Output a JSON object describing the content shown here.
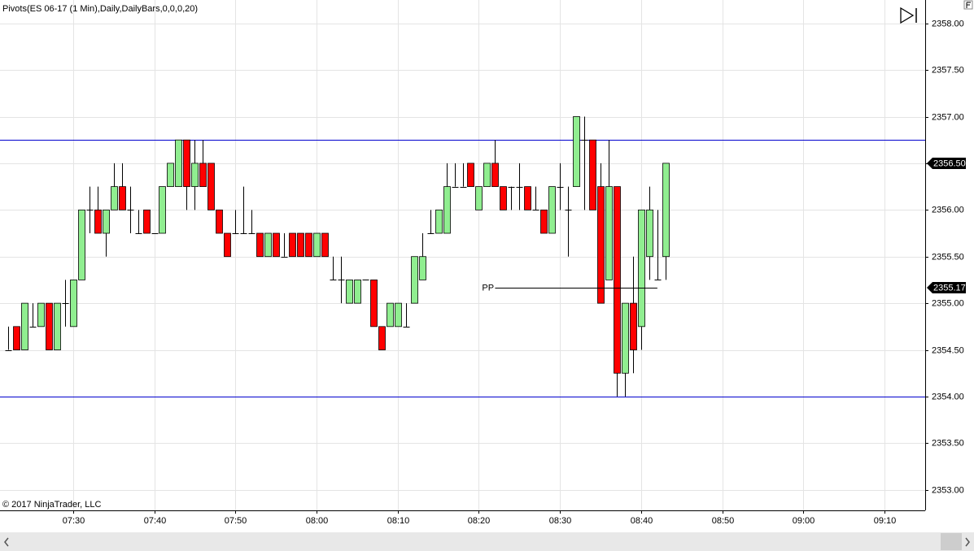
{
  "chart_data": {
    "type": "candlestick",
    "title": "Pivots(ES 06-17 (1 Min),Daily,DailyBars,0,0,0,20)",
    "footer": "© 2017 NinjaTrader, LLC",
    "x": [
      "07:22",
      "07:23",
      "07:24",
      "07:25",
      "07:26",
      "07:27",
      "07:28",
      "07:29",
      "07:30",
      "07:31",
      "07:32",
      "07:33",
      "07:34",
      "07:35",
      "07:36",
      "07:37",
      "07:38",
      "07:39",
      "07:40",
      "07:41",
      "07:42",
      "07:43",
      "07:44",
      "07:45",
      "07:46",
      "07:47",
      "07:48",
      "07:49",
      "07:50",
      "07:51",
      "07:52",
      "07:53",
      "07:54",
      "07:55",
      "07:56",
      "07:57",
      "07:58",
      "07:59",
      "08:00",
      "08:01",
      "08:02",
      "08:03",
      "08:04",
      "08:05",
      "08:06",
      "08:07",
      "08:08",
      "08:09",
      "08:10",
      "08:11",
      "08:12",
      "08:13",
      "08:14",
      "08:15",
      "08:16",
      "08:17",
      "08:18",
      "08:19",
      "08:20",
      "08:21",
      "08:22",
      "08:23",
      "08:24",
      "08:25",
      "08:26",
      "08:27",
      "08:28",
      "08:29",
      "08:30",
      "08:31",
      "08:32",
      "08:33",
      "08:34",
      "08:35",
      "08:36",
      "08:37",
      "08:38",
      "08:39",
      "08:40",
      "08:41",
      "08:42",
      "08:43"
    ],
    "open": [
      2354.5,
      2354.75,
      2354.5,
      2354.75,
      2354.75,
      2355,
      2354.5,
      2355,
      2354.75,
      2355.25,
      2356,
      2356,
      2355.75,
      2356,
      2356.25,
      2356,
      2355.75,
      2356,
      2355.75,
      2355.75,
      2356.25,
      2356.25,
      2356.75,
      2356.25,
      2356.5,
      2356.5,
      2356,
      2355.75,
      2355.75,
      2355.75,
      2355.75,
      2355.75,
      2355.5,
      2355.75,
      2355.5,
      2355.75,
      2355.75,
      2355.75,
      2355.5,
      2355.75,
      2355.25,
      2355.25,
      2355,
      2355,
      2355.25,
      2355.25,
      2354.75,
      2354.75,
      2354.75,
      2354.75,
      2355,
      2355.25,
      2355.75,
      2355.75,
      2355.75,
      2356.25,
      2356.25,
      2356.5,
      2356,
      2356.25,
      2356.5,
      2356.25,
      2356.25,
      2356.25,
      2356.25,
      2356,
      2356,
      2355.75,
      2356.25,
      2356,
      2356.25,
      2356.75,
      2356.75,
      2356.25,
      2355.25,
      2356.25,
      2354.25,
      2355,
      2354.75,
      2355.5,
      2355.25,
      2355.5
    ],
    "high": [
      2354.75,
      2354.75,
      2355,
      2355,
      2355,
      2355,
      2355,
      2355.25,
      2355.25,
      2356,
      2356.25,
      2356.25,
      2356,
      2356.5,
      2356.5,
      2356.25,
      2356,
      2356,
      2355.75,
      2356.25,
      2356.5,
      2356.75,
      2356.75,
      2356.75,
      2356.75,
      2356.5,
      2356,
      2355.75,
      2356,
      2356.25,
      2356,
      2355.75,
      2355.75,
      2355.75,
      2355.75,
      2355.75,
      2355.75,
      2355.75,
      2355.75,
      2355.75,
      2355.5,
      2355.5,
      2355.25,
      2355.25,
      2355.25,
      2355.25,
      2354.75,
      2355,
      2355,
      2355,
      2355.5,
      2355.75,
      2356,
      2356,
      2356.5,
      2356.5,
      2356.5,
      2356.5,
      2356.25,
      2356.5,
      2356.75,
      2356.25,
      2356.25,
      2356.5,
      2356.25,
      2356.25,
      2356,
      2356.25,
      2356.5,
      2356.25,
      2357,
      2357,
      2356.75,
      2356.5,
      2356.75,
      2356.25,
      2355,
      2355.5,
      2356,
      2356.25,
      2356,
      2356.5
    ],
    "low": [
      2354.5,
      2354.5,
      2354.5,
      2354.75,
      2354.75,
      2354.5,
      2354.5,
      2354.75,
      2354.75,
      2355.25,
      2355.75,
      2355.75,
      2355.5,
      2356,
      2356,
      2355.75,
      2355.75,
      2355.75,
      2355.75,
      2355.75,
      2356.25,
      2356.25,
      2356,
      2356,
      2356.25,
      2356,
      2355.75,
      2355.5,
      2355.75,
      2355.75,
      2355.75,
      2355.5,
      2355.5,
      2355.5,
      2355.5,
      2355.5,
      2355.5,
      2355.5,
      2355.5,
      2355.5,
      2355.25,
      2355,
      2355,
      2355,
      2355.25,
      2354.75,
      2354.5,
      2354.75,
      2354.75,
      2354.75,
      2355,
      2355.25,
      2355.75,
      2355.75,
      2355.75,
      2356.25,
      2356.25,
      2356.25,
      2356,
      2356.25,
      2356.25,
      2356,
      2356,
      2356,
      2356,
      2356,
      2355.75,
      2355.75,
      2356,
      2355.5,
      2356.25,
      2356,
      2356,
      2355,
      2355.25,
      2354,
      2354,
      2354.25,
      2354.5,
      2355.25,
      2355.25,
      2355.25
    ],
    "close": [
      2354.5,
      2354.5,
      2355,
      2354.75,
      2355,
      2354.5,
      2355,
      2355,
      2355.25,
      2356,
      2356,
      2355.75,
      2356,
      2356.25,
      2356,
      2356,
      2355.75,
      2355.75,
      2355.75,
      2356.25,
      2356.5,
      2356.75,
      2356.25,
      2356.5,
      2356.25,
      2356,
      2355.75,
      2355.5,
      2355.75,
      2355.75,
      2355.75,
      2355.5,
      2355.75,
      2355.5,
      2355.5,
      2355.5,
      2355.5,
      2355.5,
      2355.75,
      2355.5,
      2355.25,
      2355.25,
      2355.25,
      2355.25,
      2355.25,
      2354.75,
      2354.5,
      2355,
      2355,
      2354.75,
      2355.5,
      2355.5,
      2355.75,
      2356,
      2356.25,
      2356.25,
      2356.25,
      2356.25,
      2356.25,
      2356.5,
      2356.25,
      2356,
      2356.25,
      2356.25,
      2356,
      2356,
      2355.75,
      2356.25,
      2356.25,
      2356,
      2357,
      2356.75,
      2356,
      2355,
      2356.25,
      2354.25,
      2355,
      2354.5,
      2356,
      2356,
      2355.25,
      2356.5
    ],
    "up_color": "#90ee90",
    "down_color": "#ff0000",
    "hlines": [
      2356.75,
      2354.0
    ],
    "hline_color": "#0000cd",
    "pivot": {
      "label": "PP",
      "value": 2355.17,
      "value_label": "2355.17",
      "from": "08:21",
      "to": "08:42"
    },
    "last_price": {
      "value": 2356.5,
      "label": "2356.50"
    },
    "xlim": [
      "07:21",
      "09:15"
    ],
    "xticks": [
      "07:30",
      "07:40",
      "07:50",
      "08:00",
      "08:10",
      "08:20",
      "08:30",
      "08:40",
      "08:50",
      "09:00",
      "09:10"
    ],
    "ylim": [
      2352.78,
      2358.25
    ],
    "yticks": [
      {
        "value": 2353,
        "label": "2353.00"
      },
      {
        "value": 2353.5,
        "label": "2353.50"
      },
      {
        "value": 2354,
        "label": "2354.00"
      },
      {
        "value": 2354.5,
        "label": "2354.50"
      },
      {
        "value": 2355,
        "label": "2355.00"
      },
      {
        "value": 2355.5,
        "label": "2355.50"
      },
      {
        "value": 2356,
        "label": "2356.00"
      },
      {
        "value": 2356.5,
        "label": "2356.50"
      },
      {
        "value": 2357,
        "label": "2357.00"
      },
      {
        "value": 2357.5,
        "label": "2357.50"
      },
      {
        "value": 2358,
        "label": "2358.00"
      }
    ],
    "grid": true
  }
}
